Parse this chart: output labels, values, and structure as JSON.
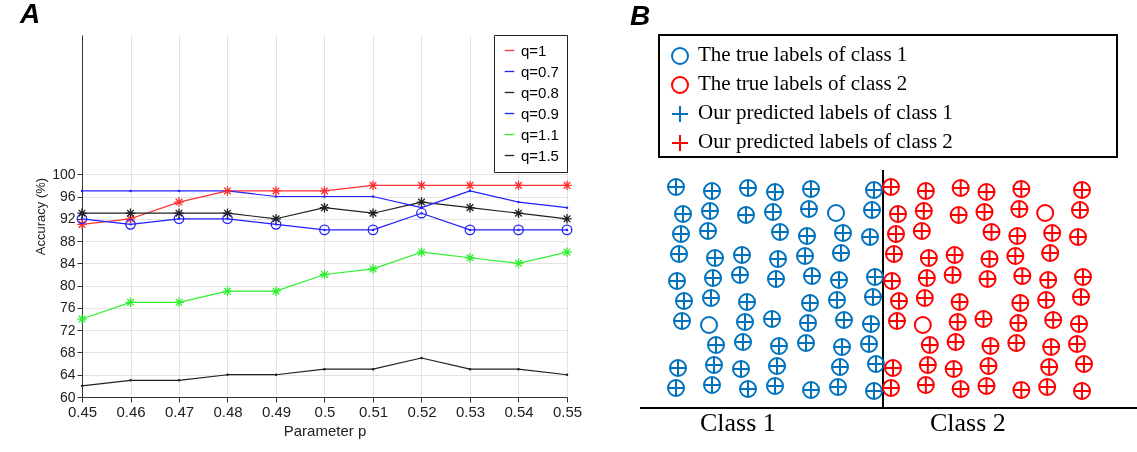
{
  "chart_data": [
    {
      "type": "line",
      "title": "A",
      "xlabel": "Parameter p",
      "ylabel": "Accuracy (%)",
      "x": [
        0.45,
        0.46,
        0.47,
        0.48,
        0.49,
        0.5,
        0.51,
        0.52,
        0.53,
        0.54,
        0.55
      ],
      "xlim": [
        0.45,
        0.55
      ],
      "xticks": [
        0.45,
        0.46,
        0.47,
        0.48,
        0.49,
        0.5,
        0.51,
        0.52,
        0.53,
        0.54,
        0.55
      ],
      "ylim": [
        60,
        125
      ],
      "yticks": [
        60,
        64,
        68,
        72,
        76,
        80,
        84,
        88,
        92,
        96,
        100
      ],
      "grid": true,
      "legend": "top right",
      "series": [
        {
          "name": "q=1",
          "color": "#ff3030",
          "marker": "cross",
          "values": [
            91,
            92,
            95,
            97,
            97,
            97,
            98,
            98,
            98,
            98,
            98
          ]
        },
        {
          "name": "q=0.7",
          "color": "#2020ff",
          "marker": "circle",
          "values": [
            92,
            91,
            92,
            92,
            91,
            90,
            90,
            93,
            90,
            90,
            90
          ]
        },
        {
          "name": "q=0.8",
          "color": "#202020",
          "marker": "cross",
          "values": [
            93,
            93,
            93,
            93,
            92,
            94,
            93,
            95,
            94,
            93,
            92
          ]
        },
        {
          "name": "q=0.9",
          "color": "#2020ff",
          "marker": "none",
          "values": [
            97,
            97,
            97,
            97,
            96,
            96,
            96,
            94,
            97,
            95,
            94
          ]
        },
        {
          "name": "q=1.1",
          "color": "#30ee30",
          "marker": "cross",
          "values": [
            74,
            77,
            77,
            79,
            79,
            82,
            83,
            86,
            85,
            84,
            86
          ]
        },
        {
          "name": "q=1.5",
          "color": "#202020",
          "marker": "none",
          "values": [
            62,
            63,
            63,
            64,
            64,
            65,
            65,
            67,
            65,
            65,
            64
          ]
        }
      ]
    },
    {
      "type": "other",
      "title": "B",
      "categories": [
        "Class 1",
        "Class 2"
      ],
      "annotations": [
        "The true labels of class 1",
        "The true labels of class 2",
        "Our predicted labels of class 1",
        "Our predicted labels of class 2"
      ]
    }
  ]
}
